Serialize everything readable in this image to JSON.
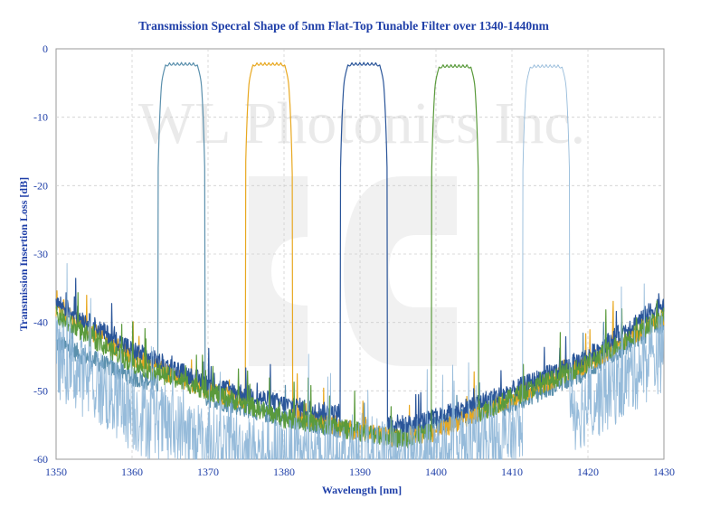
{
  "chart_data": {
    "type": "line",
    "title": "Transmission Specral Shape of 5nm Flat-Top Tunable Filter over 1340-1440nm",
    "xlabel": "Wavelength [nm]",
    "ylabel": "Transmission Insertion Loss [dB]",
    "xlim": [
      1350,
      1430
    ],
    "ylim": [
      -60,
      0
    ],
    "x_ticks": [
      "1350",
      "1360",
      "1370",
      "1380",
      "1390",
      "1400",
      "1410",
      "1420",
      "1430"
    ],
    "y_ticks": [
      "0",
      "-10",
      "-20",
      "-30",
      "-40",
      "-50",
      "-60"
    ],
    "grid": true,
    "legend": "none",
    "watermark": "WL Photonics Inc.",
    "series": [
      {
        "color": "#5b90ad",
        "center": 1366.5,
        "peak": -2.0,
        "baseline_points": [
          [
            1350,
            -43
          ],
          [
            1360,
            -48
          ],
          [
            1370,
            -51
          ],
          [
            1380,
            -54
          ],
          [
            1390,
            -56
          ],
          [
            1395,
            -57
          ],
          [
            1400,
            -55
          ],
          [
            1410,
            -52
          ],
          [
            1420,
            -47
          ],
          [
            1430,
            -40
          ]
        ]
      },
      {
        "color": "#e8a820",
        "center": 1378.0,
        "peak": -2.0,
        "baseline_points": [
          [
            1350,
            -38
          ],
          [
            1360,
            -45
          ],
          [
            1370,
            -50
          ],
          [
            1380,
            -53
          ],
          [
            1390,
            -56
          ],
          [
            1396,
            -57
          ],
          [
            1400,
            -56
          ],
          [
            1410,
            -51
          ],
          [
            1420,
            -46
          ],
          [
            1430,
            -39
          ]
        ]
      },
      {
        "color": "#2a5599",
        "center": 1390.5,
        "peak": -2.0,
        "baseline_points": [
          [
            1350,
            -37
          ],
          [
            1360,
            -44
          ],
          [
            1370,
            -49
          ],
          [
            1380,
            -52
          ],
          [
            1390,
            -54
          ],
          [
            1396,
            -55
          ],
          [
            1400,
            -54
          ],
          [
            1410,
            -50
          ],
          [
            1420,
            -45
          ],
          [
            1430,
            -37
          ]
        ]
      },
      {
        "color": "#5a9a3c",
        "center": 1402.5,
        "peak": -2.3,
        "baseline_points": [
          [
            1350,
            -39
          ],
          [
            1360,
            -46
          ],
          [
            1370,
            -50
          ],
          [
            1380,
            -54
          ],
          [
            1390,
            -56
          ],
          [
            1396,
            -57
          ],
          [
            1400,
            -56
          ],
          [
            1410,
            -51
          ],
          [
            1420,
            -46
          ],
          [
            1430,
            -39
          ]
        ]
      },
      {
        "color": "#8bb4d6",
        "center": 1414.5,
        "peak": -2.3,
        "baseline_points": [
          [
            1350,
            -45
          ],
          [
            1360,
            -53
          ],
          [
            1370,
            -58
          ],
          [
            1380,
            -60
          ],
          [
            1390,
            -60
          ],
          [
            1400,
            -60
          ],
          [
            1410,
            -57
          ],
          [
            1420,
            -52
          ],
          [
            1430,
            -44
          ]
        ]
      }
    ]
  }
}
